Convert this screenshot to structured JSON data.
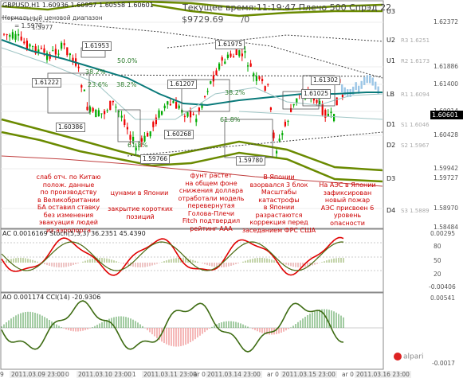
{
  "window": {
    "symbol": "GBPUSD,H1",
    "ohlc": "1.60936 1.60957 1.60558 1.60601",
    "current_price": "1.60601",
    "header_status": "Текущее время:11:19:47 Плечо 500 Спрэд 22",
    "balance": "$9729.69",
    "balance_tail": "/0",
    "channel_label": "Нормальный ценовой диапазон",
    "channel_value": "= 1.5977",
    "logo": "alpari"
  },
  "price_axis": [
    "1.62372",
    "1.61886",
    "1.61400",
    "1.60914",
    "1.60428",
    "1.59942",
    "1.59727",
    "1.58970",
    "1.58484"
  ],
  "levels": [
    {
      "name": "U3",
      "label": "",
      "value": ""
    },
    {
      "name": "U2",
      "label": "R3",
      "value": "1.6251"
    },
    {
      "name": "U1",
      "label": "R2",
      "value": "1.6173"
    },
    {
      "name": "LB",
      "label": "R1",
      "value": "1.6094"
    },
    {
      "name": "D1",
      "label": "S1",
      "value": "1.6046"
    },
    {
      "name": "D2",
      "label": "S2",
      "value": "1.5967"
    },
    {
      "name": "D3",
      "label": "",
      "value": ""
    },
    {
      "name": "D4",
      "label": "S3",
      "value": "1.5889"
    }
  ],
  "price_labels": [
    "1.61953",
    "1.61222",
    "1.60386",
    "1.61975",
    "1.61207",
    "1.60268",
    "1.59766",
    "1.61302",
    "1.61025",
    "1.59780",
    "1.5977"
  ],
  "fib_labels": [
    "50.0%",
    "38.2%",
    "23.6%",
    "38.2%",
    "61.8%",
    "38.2%",
    "23.6%",
    "61.8%"
  ],
  "annotations": [
    "слаб отч. по Китаю\nполож. данные\nпо производству\nв Великобритании\nБА оставил ставку\nбез изменения\nэвакуация людей\nиз аэропорта",
    "цунами в Японии",
    "закрытие коротких\nпозиций",
    "фунт растет\nна общем фоне\nснижения доллара\nотработали модель\nперевернутая\nГолова-Плечи\nFitch подтвердил\nрейтинг ААА",
    "В Японии\nвзорвался 3 блок\nМасштабы\nкатастрофы\nв Японии\nразрастаются\nкоррекция перед\nзаседанием ФРС США",
    "На АЭС в Японии\nзафиксирован\nновый пожар\nАЭС присвоен 6\nуровень\nопасности"
  ],
  "indicator1": {
    "title": "AC 0.0016169  Stoch(5,3,3) 36.2351 45.4390",
    "axis": [
      "0.00295",
      "80",
      "50",
      "20",
      "-0.00406"
    ]
  },
  "indicator2": {
    "title": "AO 0.001174  CCI(14) -20.9306",
    "axis": [
      "0.00541",
      "-0.0017"
    ]
  },
  "time_axis": [
    "9",
    "2011.03.09 23:00",
    "0",
    "2011.03.10 23:00",
    "1",
    "2011.03.11 23:00",
    "ar 0",
    "2011.03.14 23:00",
    "ar 0",
    "2011.03.15 23:00",
    "ar 0",
    "2011.03.16 23:00"
  ],
  "colors": {
    "bull": "#00aa00",
    "bear": "#ee0000",
    "ma": "#0a7a7a",
    "envelope": "#6a8a00",
    "annotation": "#cc0000",
    "axis_text": "#555555"
  }
}
